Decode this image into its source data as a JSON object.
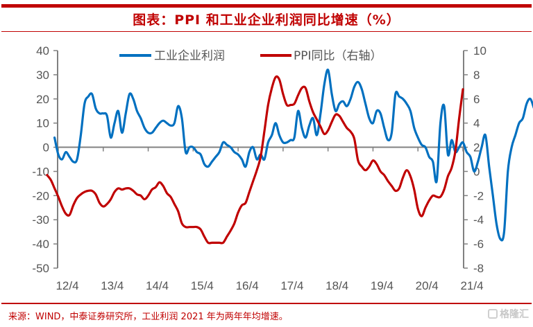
{
  "header": {
    "title": "图表：PPI 和工业企业利润同比增速（%）"
  },
  "footer": {
    "source": "来源：WIND，中泰证券研究所，工业利润 2021 年为两年年均增速。",
    "watermark": "格隆汇"
  },
  "chart_data": {
    "type": "line",
    "title": "图表：PPI 和工业企业利润同比增速（%）",
    "xlabel": "",
    "ylabel": "",
    "y_left": {
      "min": -50,
      "max": 40,
      "ticks": [
        40,
        30,
        20,
        10,
        0,
        -10,
        -20,
        -30,
        -40,
        -50
      ],
      "tick_labels": [
        "40",
        "30",
        "20",
        "10",
        "0",
        "-10",
        "-20",
        "-30",
        "-40",
        "-50"
      ]
    },
    "y_right": {
      "min": -8,
      "max": 10,
      "ticks": [
        10,
        8,
        6,
        4,
        2,
        0,
        -2,
        -4,
        -6,
        -8
      ],
      "tick_labels": [
        "10",
        "8",
        "6",
        "4",
        "2",
        "0",
        "-2",
        "-4",
        "-6",
        "-8"
      ]
    },
    "x_tick_labels": [
      "12/4",
      "13/4",
      "14/4",
      "15/4",
      "16/4",
      "17/4",
      "18/4",
      "19/4",
      "20/4",
      "21/4"
    ],
    "x_start": "2012-03",
    "x_end": "2021-04",
    "grid": false,
    "legend_position": "top",
    "series": [
      {
        "name": "工业企业利润",
        "axis": "left",
        "color": "#0070c0",
        "values": [
          4,
          -3,
          -5,
          -2,
          -4,
          -6,
          -5,
          5,
          18,
          21,
          22,
          16,
          14,
          14,
          13,
          4,
          10,
          15,
          6,
          14,
          22,
          20,
          15,
          12,
          8,
          6,
          6,
          8,
          10,
          11,
          10,
          9,
          10,
          17,
          12,
          -2,
          0,
          0,
          -2,
          -3,
          -7,
          -8,
          -6,
          -4,
          -2,
          2,
          1,
          0,
          -2,
          -3,
          -5,
          -8,
          -2,
          0,
          -5,
          -3,
          -5,
          2,
          5,
          10,
          5,
          2,
          2,
          3,
          4,
          15,
          8,
          4,
          9,
          12,
          5,
          14,
          26,
          32,
          22,
          15,
          18,
          19,
          17,
          20,
          25,
          27,
          24,
          18,
          12,
          10,
          15,
          14,
          8,
          3,
          6,
          22,
          21,
          20,
          18,
          15,
          8,
          4,
          1,
          0,
          -4,
          -6,
          -14,
          10,
          17,
          -3,
          3,
          -2,
          0,
          2,
          -2,
          -4,
          -10,
          -6,
          0,
          5,
          -8,
          -20,
          -32,
          -38,
          -35,
          -10,
          0,
          5,
          10,
          12,
          18,
          20,
          16,
          12,
          28,
          22,
          16,
          20,
          25,
          29,
          20,
          12,
          23
        ]
      },
      {
        "name": "PPI同比（右轴）",
        "axis": "right",
        "color": "#c00000",
        "values": [
          -0.3,
          -0.7,
          -1.4,
          -2.1,
          -2.9,
          -3.5,
          -3.6,
          -2.8,
          -2.2,
          -1.9,
          -1.7,
          -1.6,
          -1.6,
          -1.9,
          -2.6,
          -2.9,
          -2.7,
          -2.3,
          -1.7,
          -1.4,
          -1.5,
          -1.4,
          -1.4,
          -1.6,
          -1.9,
          -2.0,
          -2.3,
          -2.0,
          -1.5,
          -1.3,
          -0.9,
          -1.2,
          -1.8,
          -2.1,
          -2.7,
          -3.3,
          -4.3,
          -4.6,
          -4.6,
          -4.6,
          -4.6,
          -4.8,
          -5.4,
          -5.9,
          -5.9,
          -5.9,
          -5.9,
          -5.9,
          -5.4,
          -4.9,
          -4.3,
          -3.4,
          -2.8,
          -2.6,
          -1.7,
          -0.8,
          0.1,
          1.2,
          3.3,
          5.5,
          6.9,
          7.8,
          7.6,
          6.4,
          5.5,
          5.5,
          5.6,
          6.3,
          6.9,
          6.9,
          5.8,
          4.9,
          4.3,
          3.7,
          3.1,
          3.4,
          4.1,
          4.7,
          4.6,
          4.1,
          3.6,
          3.3,
          2.7,
          0.9,
          0.4,
          0.1,
          0.4,
          0.9,
          0.6,
          0.0,
          -0.3,
          -0.8,
          -1.2,
          -1.6,
          -1.4,
          -0.5,
          0.1,
          -0.4,
          -1.5,
          -3.1,
          -3.7,
          -3.0,
          -2.4,
          -2.0,
          -2.1,
          -2.1,
          -1.5,
          -0.4,
          0.3,
          1.7,
          4.4,
          6.8
        ]
      }
    ],
    "legend": [
      "工业企业利润",
      "PPI同比（右轴）"
    ]
  }
}
